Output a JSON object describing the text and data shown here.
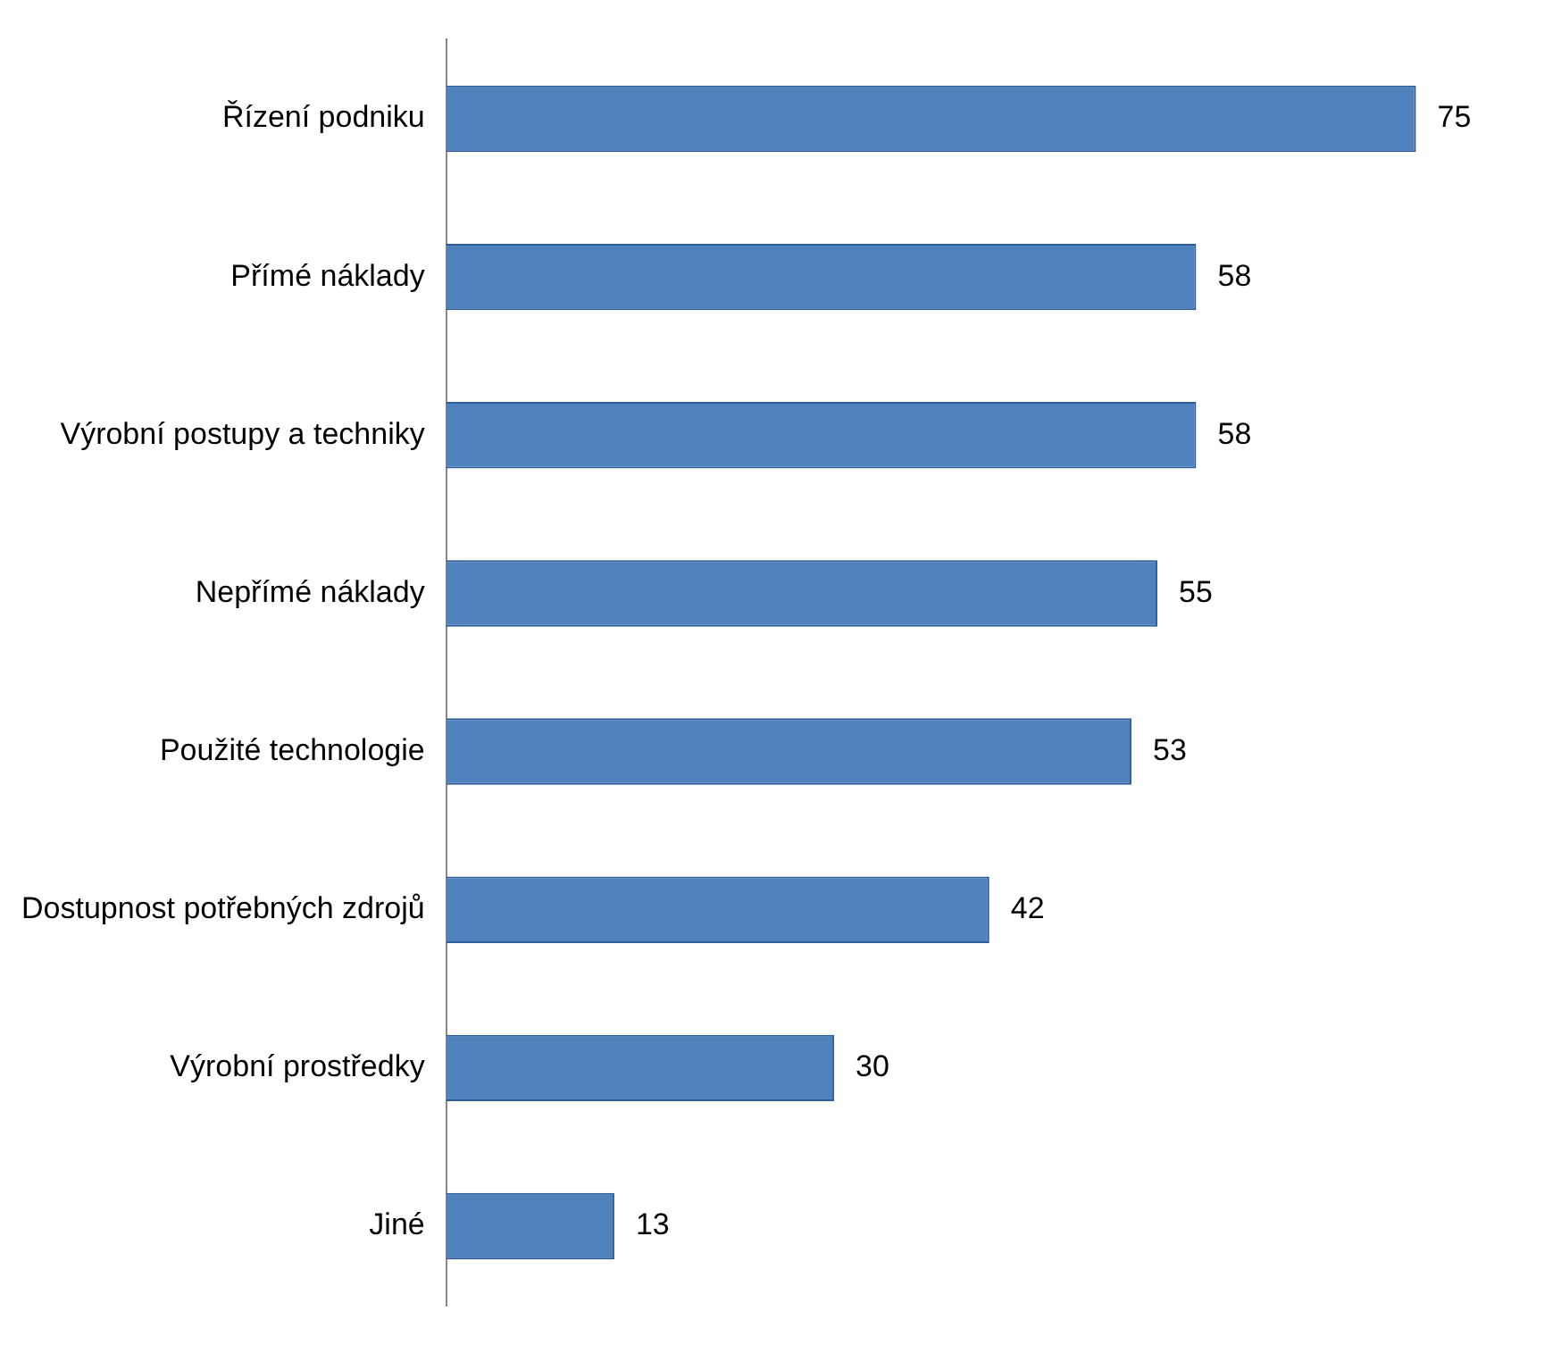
{
  "chart_data": {
    "type": "bar",
    "orientation": "horizontal",
    "categories": [
      "Řízení podniku",
      "Přímé náklady",
      "Výrobní postupy a techniky",
      "Nepřímé náklady",
      "Použité technologie",
      "Dostupnost potřebných zdrojů",
      "Výrobní prostředky",
      "Jiné"
    ],
    "values": [
      75,
      58,
      58,
      55,
      53,
      42,
      30,
      13
    ],
    "color": "#4f81bd",
    "data_labels": true,
    "legend": false
  }
}
